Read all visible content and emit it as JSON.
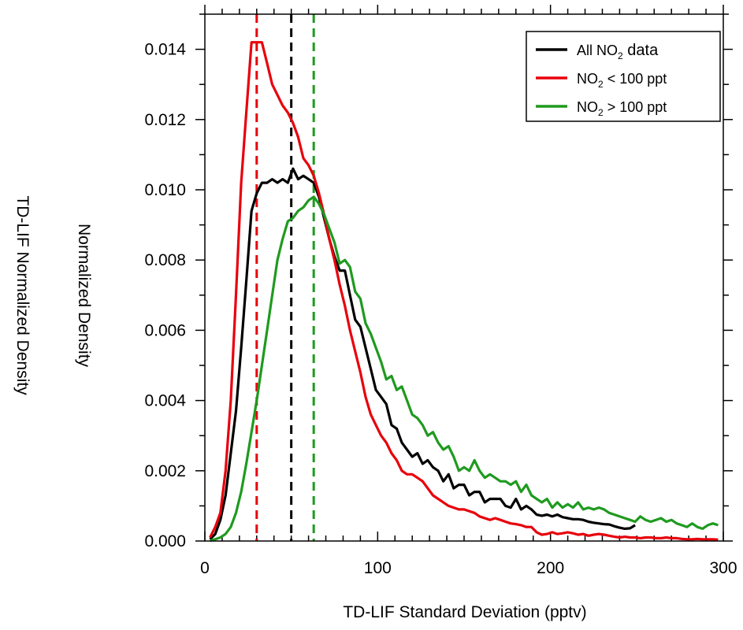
{
  "chart_data": {
    "type": "line",
    "xlabel": "TD-LIF Standard Deviation (pptv)",
    "ylabels": [
      "Normalized Density",
      "TD-LIF Normalized Density"
    ],
    "xlim": [
      0,
      300
    ],
    "ylim": [
      0,
      0.015
    ],
    "x_ticks": [
      "0",
      "100",
      "200",
      "300"
    ],
    "y_ticks": [
      "0.000",
      "0.002",
      "0.004",
      "0.006",
      "0.008",
      "0.010",
      "0.012",
      "0.014"
    ],
    "legend_position": "top-right",
    "series": [
      {
        "name": "All NO2 data",
        "legend": {
          "pre": "All NO",
          "sub": "2",
          "post": " data"
        },
        "color": "#000000",
        "x": [
          3,
          6,
          9,
          12,
          15,
          18,
          21,
          24,
          27,
          30,
          33,
          36,
          39,
          42,
          45,
          48,
          51,
          54,
          57,
          60,
          63,
          66,
          69,
          72,
          75,
          78,
          81,
          84,
          87,
          90,
          93,
          96,
          99,
          102,
          105,
          108,
          111,
          114,
          117,
          120,
          123,
          126,
          129,
          132,
          135,
          138,
          141,
          144,
          147,
          150,
          153,
          156,
          159,
          162,
          165,
          168,
          171,
          174,
          177,
          180,
          183,
          186,
          189,
          192,
          195,
          198,
          201,
          204,
          207,
          210,
          213,
          216,
          219,
          222,
          225,
          228,
          231,
          234,
          237,
          240,
          243,
          246,
          249
        ],
        "y": [
          5e-05,
          0.0002,
          0.0006,
          0.0013,
          0.0025,
          0.0037,
          0.0055,
          0.0074,
          0.0094,
          0.0099,
          0.0102,
          0.0102,
          0.0103,
          0.0102,
          0.0103,
          0.0102,
          0.0106,
          0.0103,
          0.0104,
          0.0103,
          0.0102,
          0.0098,
          0.0092,
          0.0086,
          0.0081,
          0.0077,
          0.0077,
          0.007,
          0.0063,
          0.0061,
          0.0055,
          0.0049,
          0.0043,
          0.0041,
          0.0039,
          0.0033,
          0.0032,
          0.0028,
          0.0026,
          0.0024,
          0.0025,
          0.0022,
          0.0023,
          0.0021,
          0.002,
          0.0017,
          0.0019,
          0.0015,
          0.0016,
          0.0016,
          0.0013,
          0.0014,
          0.0014,
          0.0011,
          0.0012,
          0.0012,
          0.0012,
          0.001,
          0.00095,
          0.0012,
          0.0009,
          0.001,
          0.0009,
          0.00075,
          0.00072,
          0.00075,
          0.0007,
          0.00075,
          0.00068,
          0.00065,
          0.00062,
          0.00062,
          0.0006,
          0.00055,
          0.00052,
          0.0005,
          0.00048,
          0.00047,
          0.00042,
          0.00038,
          0.00035,
          0.00036,
          0.00045
        ]
      },
      {
        "name": "NO2 < 100 ppt",
        "legend": {
          "pre": "NO",
          "sub": "2",
          "post": " < 100 ppt"
        },
        "color": "#e8000b",
        "x": [
          3,
          6,
          9,
          12,
          15,
          18,
          21,
          24,
          27,
          30,
          33,
          36,
          39,
          42,
          45,
          48,
          51,
          54,
          57,
          60,
          63,
          66,
          69,
          72,
          75,
          78,
          81,
          84,
          87,
          90,
          93,
          96,
          99,
          102,
          105,
          108,
          111,
          114,
          117,
          120,
          123,
          126,
          129,
          132,
          135,
          138,
          141,
          144,
          147,
          150,
          153,
          156,
          159,
          162,
          165,
          168,
          171,
          174,
          177,
          180,
          183,
          186,
          189,
          192,
          195,
          198,
          201,
          204,
          207,
          210,
          213,
          216,
          219,
          222,
          225,
          228,
          231,
          234,
          237,
          240,
          243,
          246,
          249,
          252,
          255,
          258,
          261,
          264,
          267,
          270,
          273,
          276,
          279,
          282,
          285,
          288,
          291,
          294,
          297
        ],
        "y": [
          0.0001,
          0.0004,
          0.0008,
          0.002,
          0.004,
          0.007,
          0.0102,
          0.0122,
          0.0142,
          0.0142,
          0.0142,
          0.0136,
          0.013,
          0.0127,
          0.0124,
          0.0122,
          0.0119,
          0.0115,
          0.0109,
          0.0107,
          0.0104,
          0.0099,
          0.0093,
          0.0086,
          0.008,
          0.0073,
          0.0067,
          0.006,
          0.0054,
          0.0048,
          0.0041,
          0.0036,
          0.0033,
          0.003,
          0.0028,
          0.0025,
          0.0023,
          0.002,
          0.0019,
          0.0019,
          0.0018,
          0.0017,
          0.0015,
          0.0013,
          0.0012,
          0.0011,
          0.001,
          0.00095,
          0.0009,
          0.0009,
          0.00085,
          0.0008,
          0.0007,
          0.00065,
          0.0006,
          0.00065,
          0.0006,
          0.00055,
          0.0005,
          0.00048,
          0.00045,
          0.0004,
          0.0004,
          0.00025,
          0.00018,
          0.0002,
          0.00025,
          0.0002,
          0.00022,
          0.00025,
          0.00022,
          0.00018,
          0.0002,
          0.00015,
          0.00018,
          0.0002,
          0.00018,
          0.00015,
          0.00012,
          0.0001,
          0.00012,
          0.0001,
          0.0001,
          8e-05,
          0.0001,
          0.0001,
          8e-05,
          8e-05,
          0.0001,
          8e-05,
          8e-05,
          6e-05,
          5e-05,
          5e-05,
          6e-05,
          5e-05,
          5e-05,
          5e-05,
          4e-05
        ]
      },
      {
        "name": "NO2 > 100 ppt",
        "legend": {
          "pre": "NO",
          "sub": "2",
          "post": " > 100 ppt"
        },
        "color": "#1f9a1f",
        "x": [
          3,
          6,
          9,
          12,
          15,
          18,
          21,
          24,
          27,
          30,
          33,
          36,
          39,
          42,
          45,
          48,
          51,
          54,
          57,
          60,
          63,
          66,
          69,
          72,
          75,
          78,
          81,
          84,
          87,
          90,
          93,
          96,
          99,
          102,
          105,
          108,
          111,
          114,
          117,
          120,
          123,
          126,
          129,
          132,
          135,
          138,
          141,
          144,
          147,
          150,
          153,
          156,
          159,
          162,
          165,
          168,
          171,
          174,
          177,
          180,
          183,
          186,
          189,
          192,
          195,
          198,
          201,
          204,
          207,
          210,
          213,
          216,
          219,
          222,
          225,
          228,
          231,
          234,
          237,
          240,
          243,
          246,
          249,
          252,
          255,
          258,
          261,
          264,
          267,
          270,
          273,
          276,
          279,
          282,
          285,
          288,
          291,
          294,
          297
        ],
        "y": [
          1e-05,
          5e-05,
          0.0001,
          0.0002,
          0.0004,
          0.0008,
          0.0014,
          0.0022,
          0.0031,
          0.004,
          0.005,
          0.006,
          0.007,
          0.008,
          0.0086,
          0.0091,
          0.0092,
          0.0094,
          0.0095,
          0.0097,
          0.0098,
          0.0096,
          0.0093,
          0.0089,
          0.0085,
          0.0079,
          0.008,
          0.0078,
          0.0071,
          0.0069,
          0.0062,
          0.0059,
          0.0055,
          0.0051,
          0.0046,
          0.0047,
          0.0043,
          0.0044,
          0.004,
          0.0036,
          0.0035,
          0.0033,
          0.003,
          0.0031,
          0.0028,
          0.0026,
          0.0027,
          0.0024,
          0.002,
          0.0021,
          0.002,
          0.0023,
          0.002,
          0.0018,
          0.0019,
          0.0018,
          0.0017,
          0.0017,
          0.0016,
          0.0017,
          0.0014,
          0.0016,
          0.0013,
          0.0012,
          0.0011,
          0.0012,
          0.00095,
          0.0011,
          0.00095,
          0.00105,
          0.00095,
          0.0011,
          0.0009,
          0.00095,
          0.0009,
          0.00095,
          0.0009,
          0.0008,
          0.00075,
          0.0007,
          0.00065,
          0.0006,
          0.00055,
          0.0007,
          0.0006,
          0.00055,
          0.0006,
          0.00065,
          0.00055,
          0.0006,
          0.0005,
          0.00045,
          0.0004,
          0.0005,
          0.0004,
          0.00035,
          0.00045,
          0.0005,
          0.00045
        ]
      }
    ],
    "vertical_markers": [
      {
        "x": 30,
        "color": "#e8000b",
        "style": "dashed"
      },
      {
        "x": 50,
        "color": "#000000",
        "style": "dashed"
      },
      {
        "x": 63,
        "color": "#1f9a1f",
        "style": "dashed"
      }
    ]
  }
}
